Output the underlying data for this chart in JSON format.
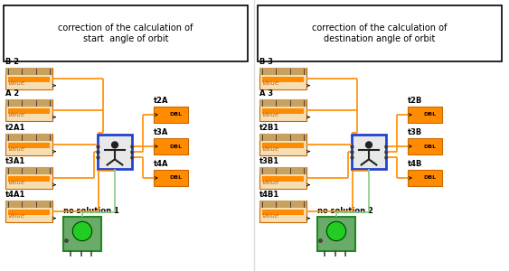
{
  "fig_width": 5.63,
  "fig_height": 3.0,
  "dpi": 100,
  "panels": [
    {
      "title": "correction of the calculation of\nstart  angle of orbit",
      "ox": 2,
      "input_labels": [
        "B 2",
        "A 2",
        "t2A1",
        "t3A1",
        "t4A1"
      ],
      "output_labels": [
        "t2A",
        "t3A",
        "t4A"
      ],
      "solution_label": "no solution 1"
    },
    {
      "title": "correction of the calculation of\ndestination angle of orbit",
      "ox": 283,
      "input_labels": [
        "B 3",
        "A 3",
        "t2B1",
        "t3B1",
        "t4B1"
      ],
      "output_labels": [
        "t2B",
        "t3B",
        "t4B"
      ],
      "solution_label": "no solution 2"
    }
  ],
  "orange": "#FF8C00",
  "orange_border": "#CC6600",
  "orange_dark": "#CC8800",
  "tan": "#F5DEB3",
  "tan_dark": "#D2B48C",
  "green_led": "#22CC22",
  "green_box": "#6aaa6a",
  "green_border": "#228822",
  "green_wire": "#88CC88",
  "blue_border": "#2244CC",
  "gray_fill": "#CCCCCC",
  "black": "#000000",
  "white": "#FFFFFF",
  "wire_orange": "#FF8C00"
}
